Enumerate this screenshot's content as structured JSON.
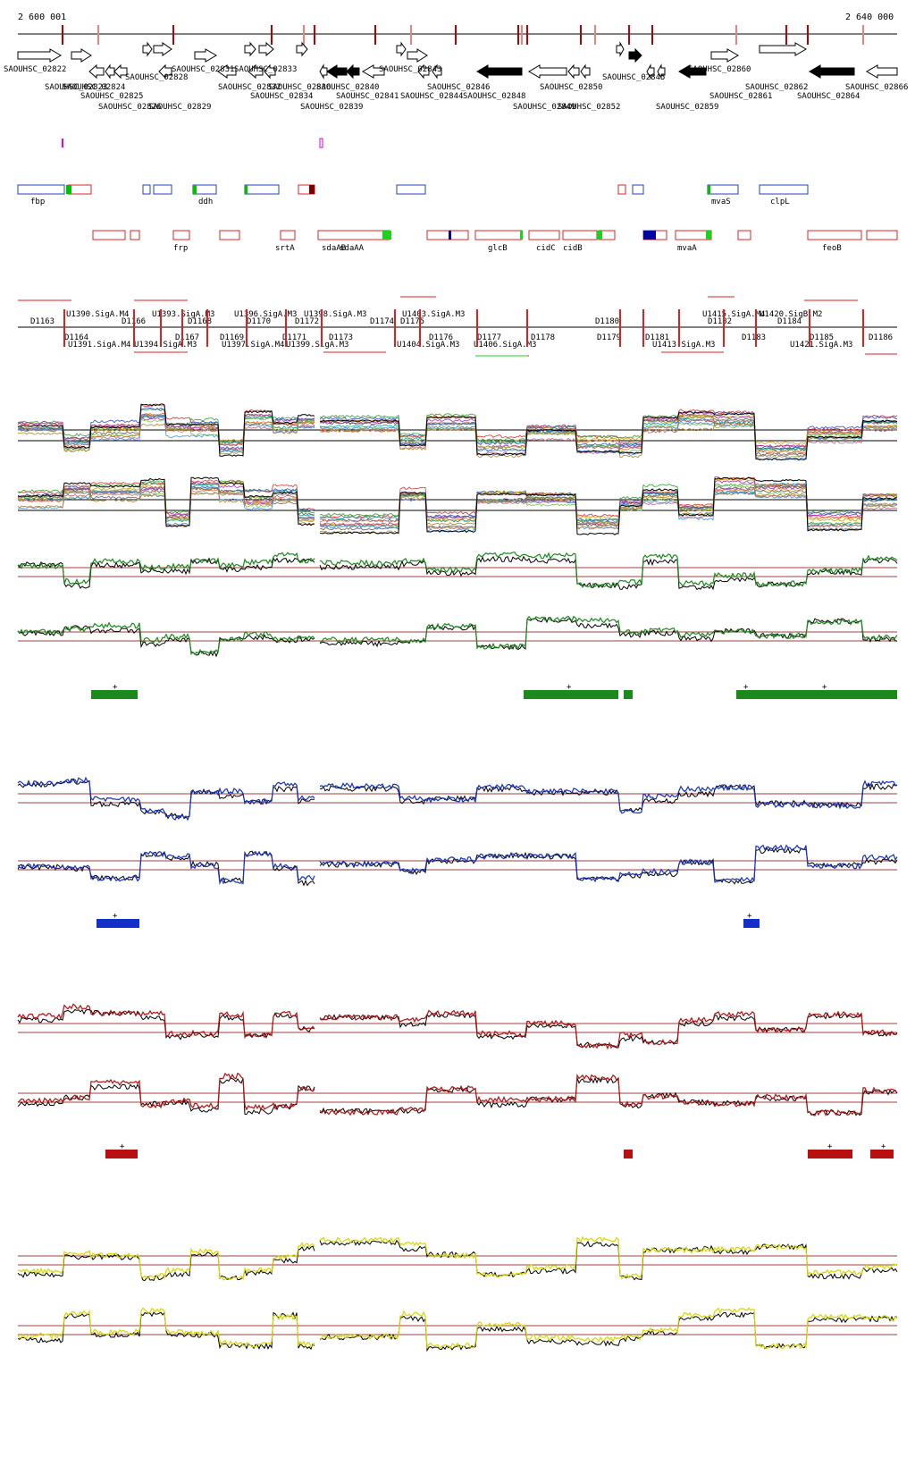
{
  "ruler": {
    "start_label": "2 600 001",
    "end_label": "2 640 000"
  },
  "gene_labels_top": [
    "SAOUHSC_02822",
    "SAOUHSC_02828",
    "SAOUHSC_02831",
    "SAOUHSC_02833",
    "SAOUHSC_02843",
    "SAOUHSC_02845",
    "SAOUHSC_02860",
    "SAOUHSC_02866"
  ],
  "gene_labels_row2": [
    "SAOUHSC_02823",
    "SAOUHSC_02824",
    "SAOUHSC_02825",
    "SAOUHSC_02832",
    "SAOUHSC_02834",
    "SAOUHSC_02836",
    "SAOUHSC_02840",
    "SAOUHSC_02841",
    "SAOUHSC_02844",
    "SAOUHSC_02846",
    "SAOUHSC_02848",
    "SAOUHSC_02850",
    "SAOUHSC_02861",
    "SAOUHSC_02862",
    "SAOUHSC_02864"
  ],
  "gene_labels_row3": [
    "SAOUHSC_02826",
    "SAOUHSC_02829",
    "SAOUHSC_02839",
    "SAOUHSC_02849",
    "SAOUHSC_02852",
    "SAOUHSC_02859"
  ],
  "operon_labels": [
    "fbp",
    "ddh",
    "mvaS",
    "clpL"
  ],
  "gene_names": [
    "frp",
    "srtA",
    "sdaAB",
    "sdaAA",
    "glcB",
    "cidC",
    "cidB",
    "mvaA",
    "feoB"
  ],
  "segments_top": [
    "U1390.SigA.M4",
    "U1393.SigA.M3",
    "U1396.SigA.M3",
    "U1398.SigA.M3",
    "U1403.SigA.M3",
    "U1415.SigA.M4",
    "U1420.SigB.M2"
  ],
  "segments_D_top": [
    "D1163",
    "D1166",
    "D1168",
    "D1170",
    "D1172",
    "D1174",
    "D1175",
    "D1180",
    "D1182",
    "D1184"
  ],
  "segments_D_bottom": [
    "D1164",
    "D1167",
    "D1169",
    "D1171",
    "D1173",
    "D1176",
    "D1177",
    "D1178",
    "D1179",
    "D1181",
    "D1183",
    "D1185",
    "D1186"
  ],
  "segments_bottom": [
    "U1391.SigA.M4",
    "U1394.SigA.M3",
    "U1397.SigA.M4",
    "U1399.SigA.M3",
    "U1404.SigA.M3",
    "U1406.SigA.M3",
    "U1413.SigA.M3",
    "U1421.SigA.M3"
  ],
  "plus_marker": "+",
  "colors": {
    "green": "#1a8a1a",
    "blue": "#1530c8",
    "red": "#b81010",
    "yellow": "#d8d800",
    "gene_red": "#e02020",
    "operon_blue": "#2040c0"
  }
}
